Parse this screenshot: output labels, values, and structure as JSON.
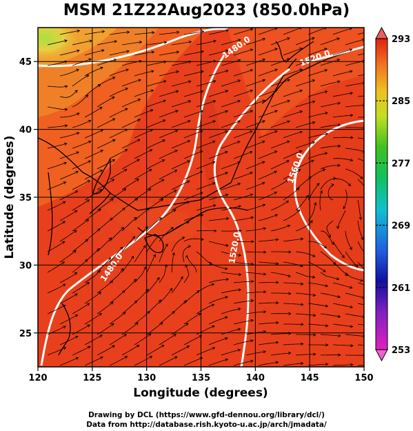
{
  "title": "MSM 21Z22Aug2023 (850.0hPa)",
  "x_axis": {
    "label": "Longitude (degrees)",
    "range": [
      120,
      150
    ],
    "ticks": [
      "120",
      "125",
      "130",
      "135",
      "140",
      "145",
      "150"
    ]
  },
  "y_axis": {
    "label": "Latitude  (degrees)",
    "range": [
      22.5,
      47.5
    ],
    "ticks": [
      "25",
      "30",
      "35",
      "40",
      "45"
    ]
  },
  "colorbar": {
    "range": [
      253,
      293
    ],
    "ticks": [
      "253",
      "261",
      "269",
      "277",
      "285",
      "293"
    ]
  },
  "contour_labels": [
    "1480.0",
    "1520.0",
    "1560.0",
    "1520.0",
    "1480.0"
  ],
  "credits": {
    "line1": "Drawing by DCL (https://www.gfd-dennou.org/library/dcl/)",
    "line2": "Data from http://database.rish.kyoto-u.ac.jp/arch/jmadata/"
  },
  "colors": {
    "field_main": "#e8401c",
    "field_warm": "#f06020",
    "field_cool": "#f2a030",
    "field_coldest": "#b8e040",
    "contour": "#ffffff",
    "streamline": "#000000"
  }
}
